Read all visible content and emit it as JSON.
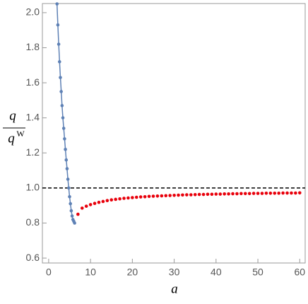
{
  "chart_data": {
    "type": "scatter",
    "x_label": "a",
    "y_label": {
      "numerator": "q",
      "denominator": "q",
      "superscript": "W"
    },
    "xlim": [
      -1.5,
      61.3
    ],
    "ylim": [
      0.572,
      2.052
    ],
    "xticks": [
      0,
      10,
      20,
      30,
      40,
      50,
      60
    ],
    "yticks": [
      0.6,
      0.8,
      {
        "value": 1.0,
        "label": "1.0"
      },
      1.2,
      1.4,
      1.6,
      1.8,
      {
        "value": 2.0,
        "label": "2.0"
      }
    ],
    "reference_line": 1,
    "series": [
      {
        "color": "#5e81b5",
        "line": true,
        "x": [
          2.0,
          2.2,
          2.4,
          2.6,
          2.8,
          3.0,
          3.2,
          3.4,
          3.6,
          3.8,
          4.0,
          4.2,
          4.4,
          4.6,
          4.8,
          5.0,
          5.2,
          5.4,
          5.6,
          5.8,
          6.0,
          6.2
        ],
        "values": [
          2.05,
          1.93,
          1.82,
          1.72,
          1.63,
          1.55,
          1.47,
          1.4,
          1.34,
          1.28,
          1.22,
          1.16,
          1.11,
          1.05,
          1.0,
          0.95,
          0.91,
          0.87,
          0.84,
          0.82,
          0.81,
          0.8
        ]
      },
      {
        "color": "#e8000b",
        "line": false,
        "x": [
          7,
          8,
          9,
          10,
          11,
          12,
          13,
          14,
          15,
          16,
          17,
          18,
          19,
          20,
          21,
          22,
          23,
          24,
          25,
          26,
          27,
          28,
          29,
          30,
          31,
          32,
          33,
          34,
          35,
          36,
          37,
          38,
          39,
          40,
          41,
          42,
          43,
          44,
          45,
          46,
          47,
          48,
          49,
          50,
          51,
          52,
          53,
          54,
          55,
          56,
          57,
          58,
          59,
          60
        ],
        "values": [
          0.85,
          0.885,
          0.896,
          0.905,
          0.912,
          0.918,
          0.923,
          0.928,
          0.932,
          0.935,
          0.938,
          0.941,
          0.943,
          0.945,
          0.947,
          0.949,
          0.95,
          0.952,
          0.953,
          0.954,
          0.955,
          0.956,
          0.957,
          0.958,
          0.959,
          0.96,
          0.961,
          0.961,
          0.962,
          0.963,
          0.963,
          0.964,
          0.964,
          0.965,
          0.965,
          0.966,
          0.966,
          0.967,
          0.967,
          0.968,
          0.968,
          0.968,
          0.969,
          0.969,
          0.969,
          0.97,
          0.97,
          0.97,
          0.97,
          0.971,
          0.971,
          0.971,
          0.971,
          0.972
        ]
      }
    ]
  }
}
